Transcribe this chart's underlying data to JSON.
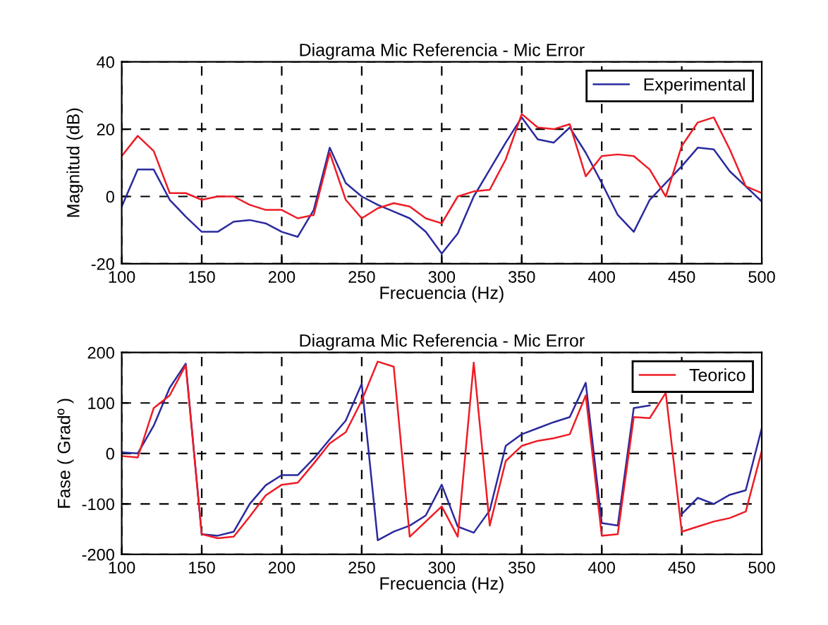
{
  "chart_data": [
    {
      "type": "line",
      "title": "Diagrama Mic Referencia - Mic Error",
      "xlabel": "Frecuencia (Hz)",
      "ylabel": "Magnitud (dB)",
      "x": [
        100,
        110,
        120,
        130,
        140,
        150,
        160,
        170,
        180,
        190,
        200,
        210,
        220,
        230,
        240,
        250,
        260,
        270,
        280,
        290,
        300,
        310,
        320,
        330,
        340,
        350,
        360,
        370,
        380,
        390,
        400,
        410,
        420,
        430,
        440,
        450,
        460,
        470,
        480,
        490,
        500
      ],
      "series": [
        {
          "name": "Experimental",
          "color": "#2a2a9e",
          "values": [
            -3,
            8,
            8,
            -1,
            -6,
            -10.5,
            -10.5,
            -7.5,
            -7,
            -8,
            -10.5,
            -12,
            -4,
            14.5,
            4,
            0,
            -2.5,
            -4.5,
            -6.5,
            -10.5,
            -17,
            -11,
            0,
            8,
            16,
            23.5,
            17,
            16,
            20.5,
            13,
            4,
            -5.5,
            -10.5,
            -1,
            4,
            9,
            14.5,
            14,
            7.5,
            3,
            -1.5
          ]
        },
        {
          "color": "#ee1c25",
          "values": [
            12,
            18,
            13.5,
            1,
            1,
            -1,
            0,
            0,
            -2.5,
            -4,
            -4,
            -6.5,
            -5.5,
            13,
            -1,
            -6.5,
            -3.5,
            -2,
            -3,
            -6.5,
            -8,
            0,
            1.5,
            2,
            11,
            24.5,
            20.5,
            20,
            21.5,
            6,
            12,
            12.5,
            12,
            8,
            0,
            15,
            22,
            23.5,
            14,
            3,
            1
          ]
        }
      ],
      "xlim": [
        100,
        500
      ],
      "xticks": [
        100,
        150,
        200,
        250,
        300,
        350,
        400,
        450,
        500
      ],
      "ylim": [
        -20,
        40
      ],
      "yticks": [
        -20,
        0,
        20,
        40
      ],
      "grid": true,
      "legend": "top right"
    },
    {
      "type": "line",
      "title": "Diagrama Mic Referencia - Mic Error",
      "xlabel": "Frecuencia (Hz)",
      "ylabel": "Fase ( Gradº )",
      "x": [
        100,
        110,
        120,
        130,
        140,
        150,
        160,
        170,
        180,
        190,
        200,
        210,
        220,
        230,
        240,
        250,
        260,
        270,
        280,
        290,
        300,
        310,
        320,
        330,
        340,
        350,
        360,
        370,
        380,
        390,
        400,
        410,
        420,
        430,
        440,
        450,
        460,
        470,
        480,
        490,
        500
      ],
      "series": [
        {
          "color": "#2a2a9e",
          "values": [
            2,
            0,
            55,
            130,
            178,
            -160,
            -163,
            -155,
            -100,
            -63,
            -43,
            -43,
            -10,
            28,
            65,
            138,
            -172,
            -155,
            -143,
            -123,
            -62,
            -145,
            -157,
            -113,
            15,
            38,
            50,
            62,
            72,
            140,
            -138,
            -143,
            90,
            95,
            null,
            -120,
            -88,
            -100,
            -82,
            -73,
            50
          ]
        },
        {
          "name": "Teorico",
          "color": "#ee1c25",
          "values": [
            -5,
            -8,
            90,
            115,
            175,
            -160,
            -168,
            -165,
            -125,
            -83,
            -62,
            -58,
            -20,
            20,
            42,
            105,
            182,
            172,
            -165,
            -135,
            -105,
            -165,
            180,
            -143,
            -15,
            15,
            25,
            30,
            38,
            115,
            -163,
            -160,
            72,
            70,
            120,
            -155,
            -145,
            -135,
            -128,
            -115,
            5
          ]
        }
      ],
      "xlim": [
        100,
        500
      ],
      "xticks": [
        100,
        150,
        200,
        250,
        300,
        350,
        400,
        450,
        500
      ],
      "ylim": [
        -200,
        200
      ],
      "yticks": [
        -200,
        -100,
        0,
        100,
        200
      ],
      "grid": true,
      "legend": "top right"
    }
  ]
}
